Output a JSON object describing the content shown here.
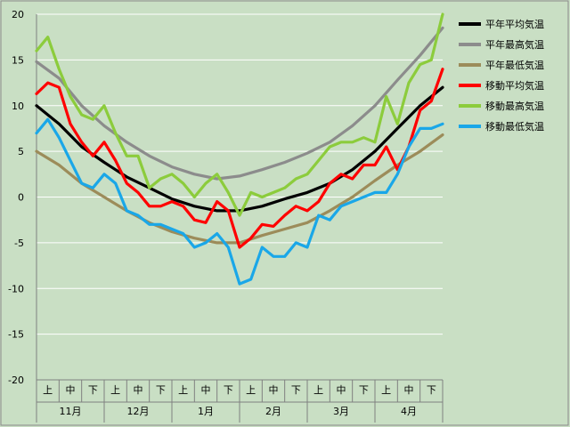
{
  "chart_data": {
    "type": "line",
    "title": "",
    "xlabel": "",
    "ylabel": "",
    "ylim": [
      -20,
      20
    ],
    "yticks": [
      20,
      15,
      10,
      5,
      0,
      -5,
      -10,
      -15,
      -20
    ],
    "grid": true,
    "legend_position": "right",
    "xlim": [
      0,
      18
    ],
    "x_units": "旬 (10-day period index, 0 = start of 11月上旬)",
    "x_sublabels": [
      "上",
      "中",
      "下",
      "上",
      "中",
      "下",
      "上",
      "中",
      "下",
      "上",
      "中",
      "下",
      "上",
      "中",
      "下",
      "上",
      "中",
      "下"
    ],
    "x_months": [
      "11月",
      "12月",
      "1月",
      "2月",
      "3月",
      "4月"
    ],
    "series": [
      {
        "name": "平年平均気温",
        "color": "#000000",
        "x": [
          0,
          1,
          2,
          3,
          4,
          5,
          6,
          7,
          8,
          9,
          10,
          11,
          12,
          13,
          14,
          15,
          16,
          17,
          18
        ],
        "values": [
          10.0,
          8.0,
          5.5,
          3.8,
          2.2,
          1.0,
          -0.2,
          -1.0,
          -1.5,
          -1.5,
          -1.0,
          -0.2,
          0.5,
          1.5,
          3.0,
          5.0,
          7.5,
          10.0,
          12.0
        ]
      },
      {
        "name": "平年最高気温",
        "color": "#8c8c8c",
        "x": [
          0,
          1,
          2,
          3,
          4,
          5,
          6,
          7,
          8,
          9,
          10,
          11,
          12,
          13,
          14,
          15,
          16,
          17,
          18
        ],
        "values": [
          14.8,
          13.0,
          10.0,
          7.8,
          6.0,
          4.5,
          3.3,
          2.5,
          2.0,
          2.3,
          3.0,
          3.8,
          4.8,
          6.0,
          7.8,
          10.0,
          12.8,
          15.5,
          18.5
        ]
      },
      {
        "name": "平年最低気温",
        "color": "#9c8c5a",
        "x": [
          0,
          1,
          2,
          3,
          4,
          5,
          6,
          7,
          8,
          9,
          10,
          11,
          12,
          13,
          14,
          15,
          16,
          17,
          18
        ],
        "values": [
          5.0,
          3.5,
          1.5,
          0.0,
          -1.5,
          -2.8,
          -3.8,
          -4.5,
          -5.0,
          -5.0,
          -4.2,
          -3.5,
          -2.8,
          -1.5,
          0.0,
          1.8,
          3.5,
          5.0,
          6.8
        ]
      },
      {
        "name": "移動平均気温",
        "color": "#ff0000",
        "x": [
          0,
          0.5,
          1,
          1.5,
          2,
          2.5,
          3,
          3.5,
          4,
          4.5,
          5,
          5.5,
          6,
          6.5,
          7,
          7.5,
          8,
          8.5,
          9,
          9.5,
          10,
          10.5,
          11,
          11.5,
          12,
          12.5,
          13,
          13.5,
          14,
          14.5,
          15,
          15.5,
          16,
          16.5,
          17,
          17.5,
          18
        ],
        "values": [
          11.3,
          12.5,
          12.0,
          8.0,
          6.0,
          4.5,
          6.0,
          4.0,
          1.5,
          0.5,
          -1.0,
          -1.0,
          -0.5,
          -1.0,
          -2.5,
          -2.8,
          -0.5,
          -1.5,
          -5.5,
          -4.5,
          -3.0,
          -3.2,
          -2.0,
          -1.0,
          -1.5,
          -0.5,
          1.5,
          2.5,
          2.0,
          3.5,
          3.5,
          5.5,
          3.0,
          5.5,
          9.5,
          10.5,
          14.0
        ]
      },
      {
        "name": "移動最高気温",
        "color": "#8ccc3c",
        "x": [
          0,
          0.5,
          1,
          1.5,
          2,
          2.5,
          3,
          3.5,
          4,
          4.5,
          5,
          5.5,
          6,
          6.5,
          7,
          7.5,
          8,
          8.5,
          9,
          9.5,
          10,
          10.5,
          11,
          11.5,
          12,
          12.5,
          13,
          13.5,
          14,
          14.5,
          15,
          15.5,
          16,
          16.5,
          17,
          17.5,
          18
        ],
        "values": [
          16.0,
          17.5,
          14.0,
          11.0,
          9.0,
          8.5,
          10.0,
          7.0,
          4.5,
          4.5,
          1.0,
          2.0,
          2.5,
          1.5,
          0.0,
          1.5,
          2.5,
          0.5,
          -2.0,
          0.5,
          0.0,
          0.5,
          1.0,
          2.0,
          2.5,
          4.0,
          5.5,
          6.0,
          6.0,
          6.5,
          6.0,
          11.0,
          8.0,
          12.5,
          14.5,
          15.0,
          20.0
        ]
      },
      {
        "name": "移動最低気温",
        "color": "#1aa7e8",
        "x": [
          0,
          0.5,
          1,
          1.5,
          2,
          2.5,
          3,
          3.5,
          4,
          4.5,
          5,
          5.5,
          6,
          6.5,
          7,
          7.5,
          8,
          8.5,
          9,
          9.5,
          10,
          10.5,
          11,
          11.5,
          12,
          12.5,
          13,
          13.5,
          14,
          14.5,
          15,
          15.5,
          16,
          16.5,
          17,
          17.5,
          18
        ],
        "values": [
          7.0,
          8.5,
          6.5,
          4.0,
          1.5,
          1.0,
          2.5,
          1.5,
          -1.5,
          -2.0,
          -3.0,
          -3.0,
          -3.5,
          -4.0,
          -5.5,
          -5.0,
          -4.0,
          -5.5,
          -9.5,
          -9.0,
          -5.5,
          -6.5,
          -6.5,
          -5.0,
          -5.5,
          -2.0,
          -2.5,
          -1.0,
          -0.5,
          0.0,
          0.5,
          0.5,
          2.5,
          5.5,
          7.5,
          7.5,
          8.0
        ]
      }
    ]
  }
}
